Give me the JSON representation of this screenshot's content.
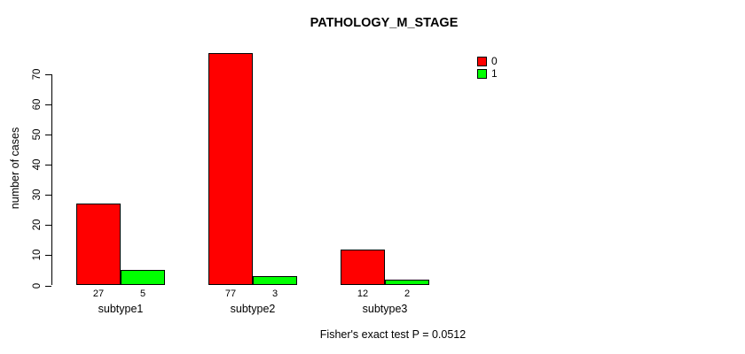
{
  "chart_data": {
    "type": "bar",
    "title": "PATHOLOGY_M_STAGE",
    "ylabel": "number of cases",
    "xlabel": "",
    "categories": [
      "subtype1",
      "subtype2",
      "subtype3"
    ],
    "series": [
      {
        "name": "0",
        "color": "#ff0000",
        "values": [
          27,
          77,
          12
        ]
      },
      {
        "name": "1",
        "color": "#00ff00",
        "values": [
          5,
          3,
          2
        ]
      }
    ],
    "bar_value_labels": [
      [
        "27",
        "5"
      ],
      [
        "77",
        "3"
      ],
      [
        "12",
        "2"
      ]
    ],
    "yticks": [
      0,
      10,
      20,
      30,
      40,
      50,
      60,
      70
    ],
    "ylim": [
      0,
      70
    ],
    "grid": false,
    "legend_position": "top-right",
    "annotation": "Fisher's exact test P = 0.0512"
  },
  "colors": {
    "background": "#ffffff",
    "axis": "#000000",
    "text": "#000000"
  }
}
